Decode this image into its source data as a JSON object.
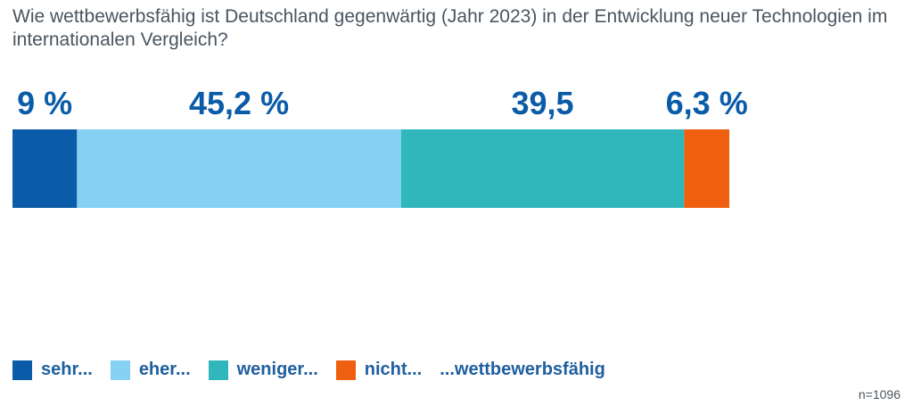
{
  "title": "Wie wettbewerbsfähig ist Deutschland gegenwärtig (Jahr 2023) in der Entwicklung neuer Technologien im internationalen Vergleich?",
  "note": "n=1096",
  "legend_suffix": "...wettbewerbsfähig",
  "chart_data": {
    "type": "bar",
    "orientation": "horizontal-stacked",
    "title": "Wie wettbewerbsfähig ist Deutschland gegenwärtig (Jahr 2023) in der Entwicklung neuer Technologien im internationalen Vergleich?",
    "unit": "%",
    "legend_position": "bottom-left",
    "grid": false,
    "series": [
      {
        "name": "sehr...",
        "value": 9,
        "label": "9 %",
        "color": "#0a5ca8"
      },
      {
        "name": "eher...",
        "value": 45.2,
        "label": "45,2 %",
        "color": "#86d0f4"
      },
      {
        "name": "weniger...",
        "value": 39.5,
        "label": "39,5",
        "color": "#2fb7bc"
      },
      {
        "name": "nicht...",
        "value": 6.3,
        "label": "6,3 %",
        "color": "#ee6010"
      }
    ]
  }
}
